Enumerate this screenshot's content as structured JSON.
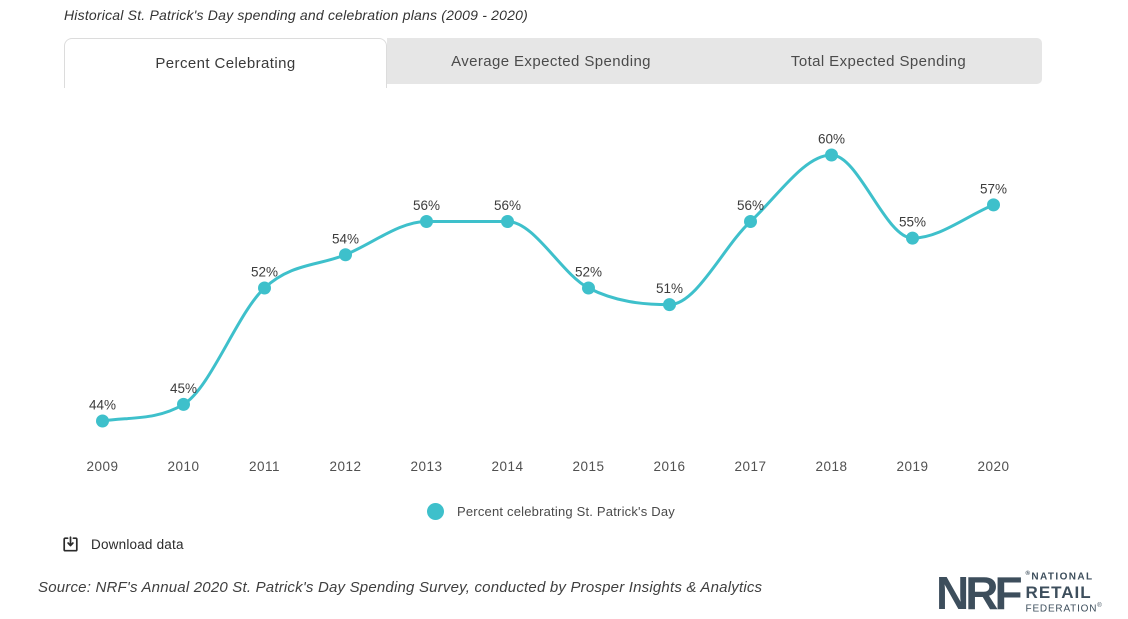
{
  "title": "Historical St. Patrick's Day spending and celebration plans (2009 - 2020)",
  "tabs": [
    {
      "label": "Percent Celebrating",
      "active": true
    },
    {
      "label": "Average Expected Spending",
      "active": false
    },
    {
      "label": "Total Expected Spending",
      "active": false
    }
  ],
  "chart_data": {
    "type": "line",
    "categories": [
      "2009",
      "2010",
      "2011",
      "2012",
      "2013",
      "2014",
      "2015",
      "2016",
      "2017",
      "2018",
      "2019",
      "2020"
    ],
    "series": [
      {
        "name": "Percent celebrating St. Patrick's Day",
        "values": [
          44,
          45,
          52,
          54,
          56,
          56,
          52,
          51,
          56,
          60,
          55,
          57
        ]
      }
    ],
    "value_suffix": "%",
    "point_labels_visible": true,
    "grid": false,
    "axes_visible": false,
    "legend_position": "bottom",
    "line_color": "#3ec0cb",
    "point_color": "#3ec0cb",
    "label_color": "#3c3c3c",
    "axis_label_color": "#505050"
  },
  "legend": {
    "label": "Percent celebrating St. Patrick's Day",
    "marker_color": "#3ec0cb"
  },
  "download": {
    "label": "Download data"
  },
  "source": "Source: NRF's Annual 2020 St. Patrick's Day Spending Survey, conducted by Prosper Insights & Analytics",
  "logo": {
    "acronym": "NRF",
    "registered_mark": "®",
    "line1": "NATIONAL",
    "line2": "RETAIL",
    "line3": "FEDERATION",
    "color": "#3d4e5c"
  }
}
